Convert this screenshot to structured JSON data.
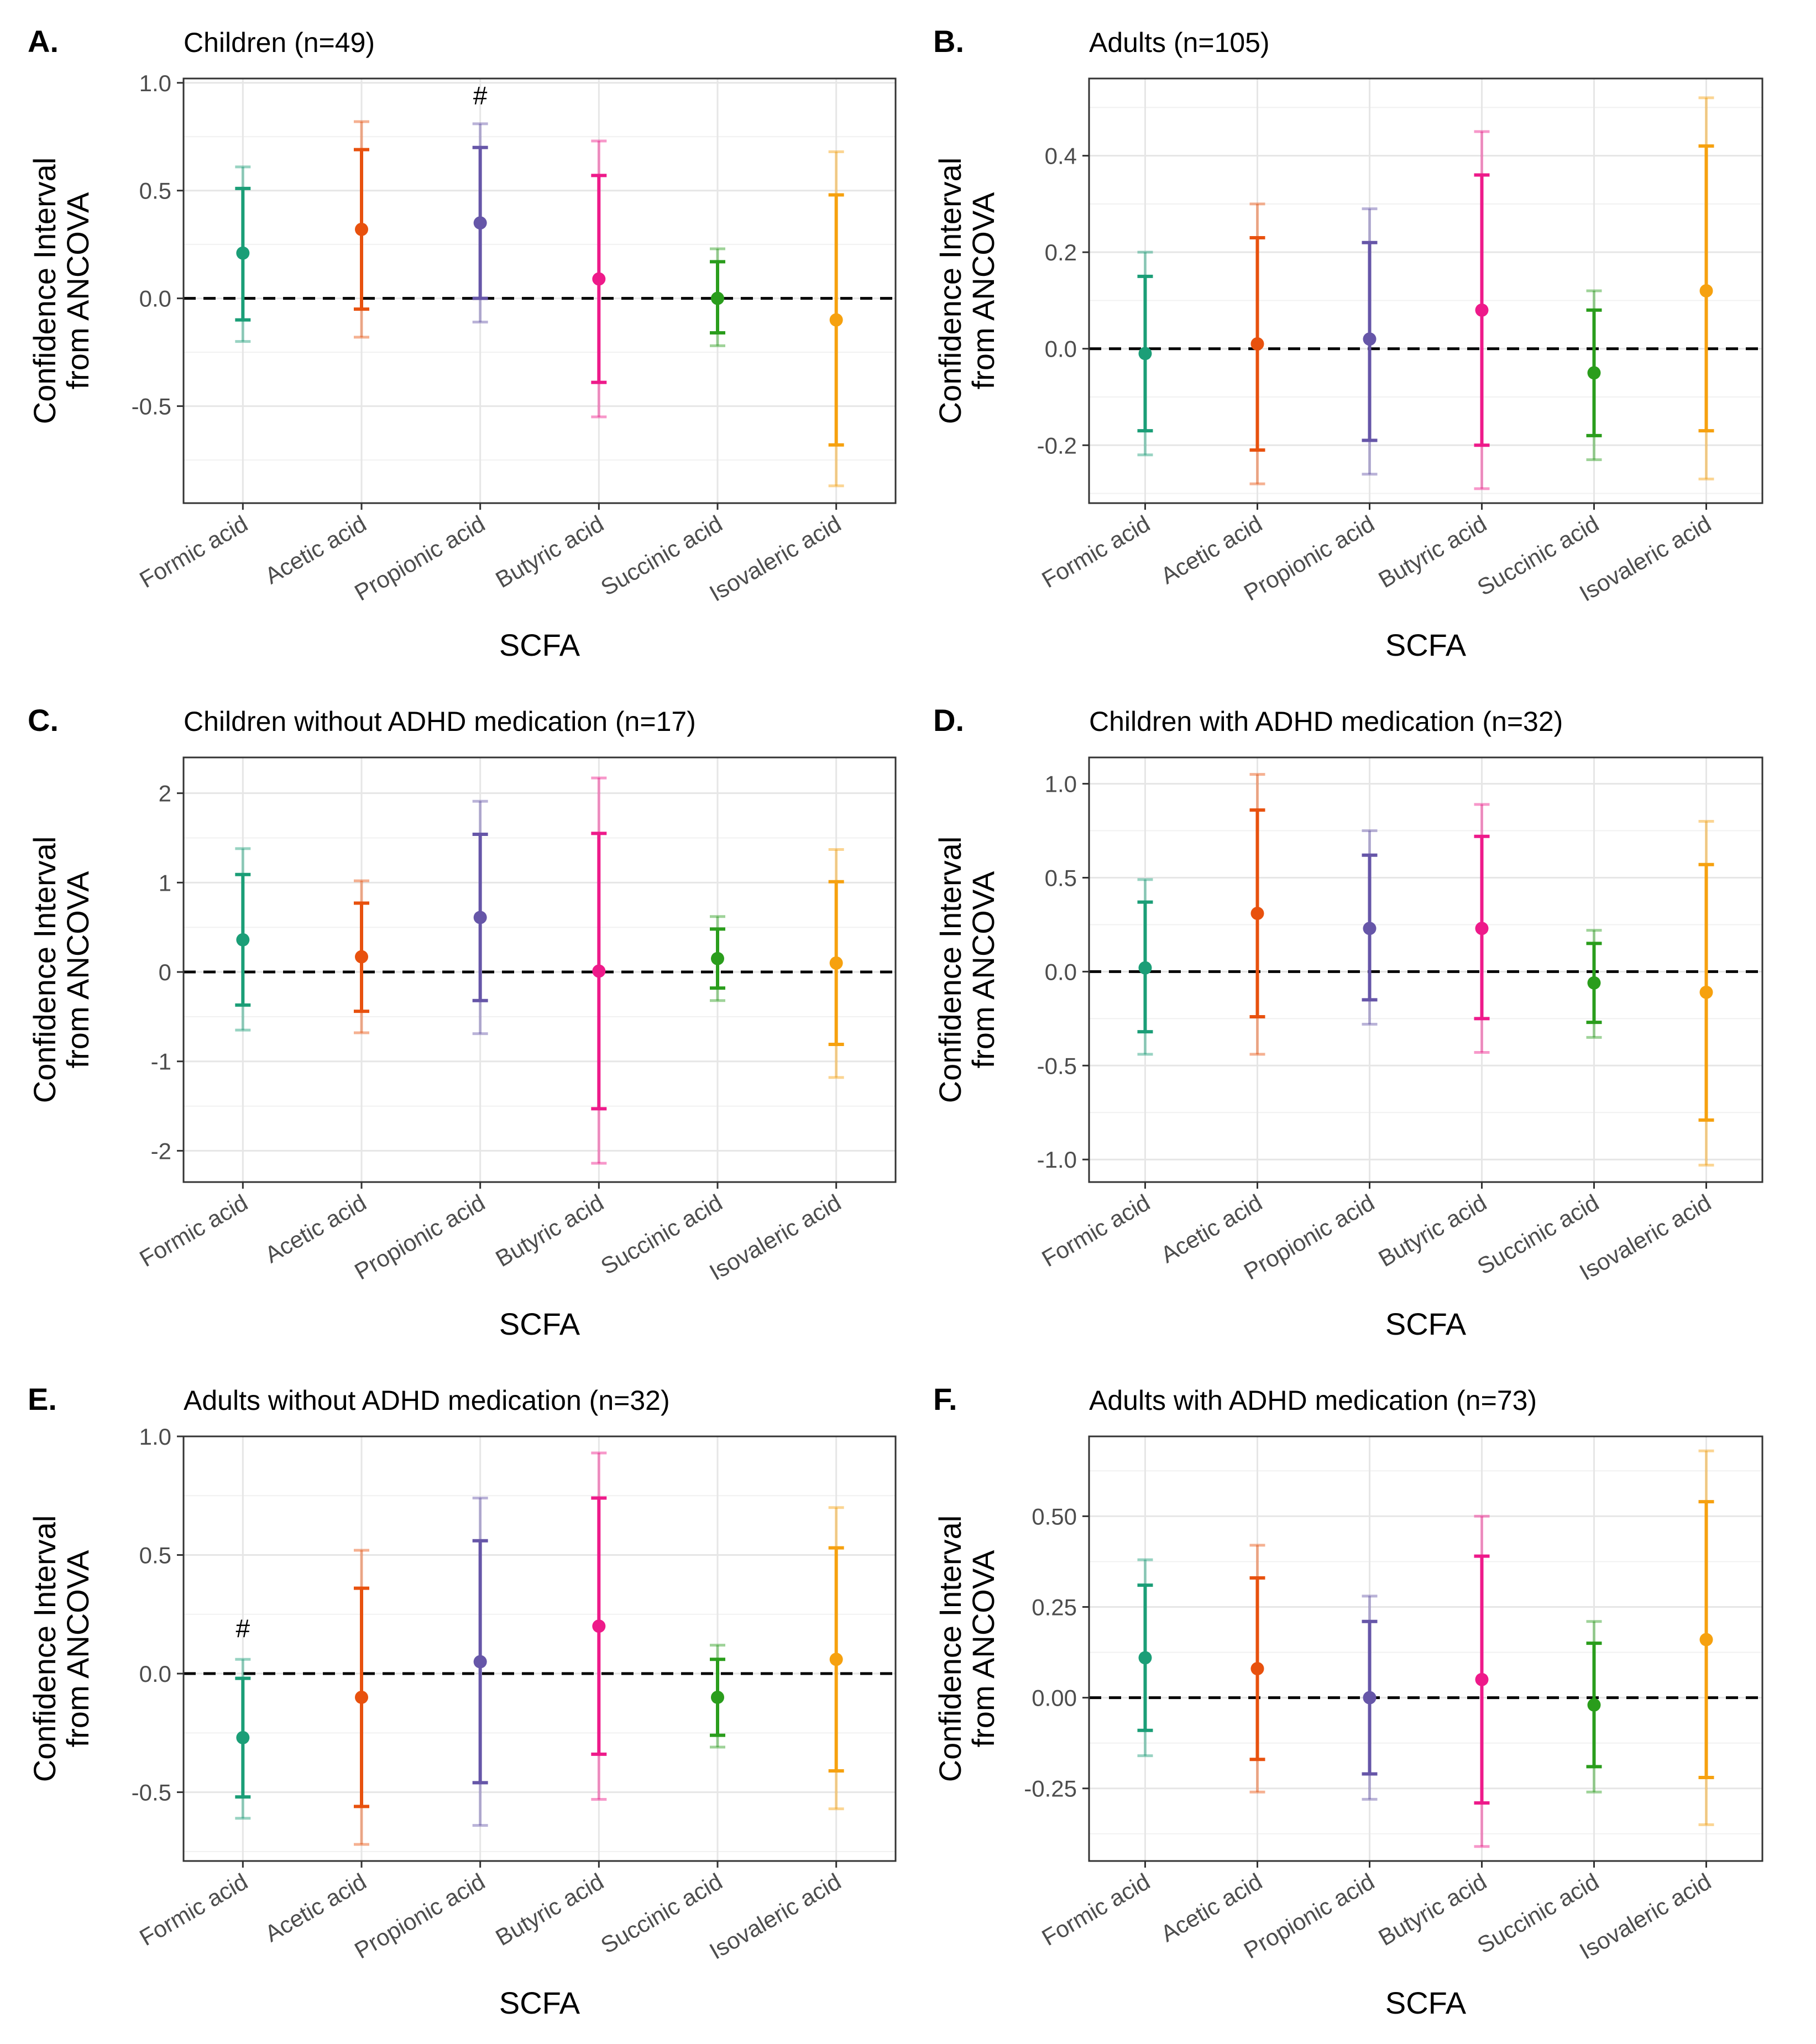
{
  "figure": {
    "colors": {
      "Formic acid": "#1b9e77",
      "Acetic acid": "#e8510e",
      "Propionic acid": "#6656a8",
      "Butyric acid": "#ee1a8a",
      "Succinic acid": "#2a9d1c",
      "Isovaleric acid": "#f6a10f"
    },
    "grid": true,
    "reference_line": 0
  },
  "chart_data": [
    {
      "panel": "A.",
      "type": "errorbar",
      "title": "Children (n=49)",
      "xlabel": "SCFA",
      "ylabel_line1": "Confidence Interval",
      "ylabel_line2": "from ANCOVA",
      "ylim": [
        -0.95,
        1.02
      ],
      "yticks": [
        1.0,
        0.5,
        0.0,
        -0.5
      ],
      "ytick_labels": [
        "1.0",
        "0.5",
        "0.0",
        "-0.5"
      ],
      "categories": [
        "Formic acid",
        "Acetic acid",
        "Propionic acid",
        "Butyric acid",
        "Succinic acid",
        "Isovaleric acid"
      ],
      "estimate": [
        0.21,
        0.32,
        0.35,
        0.09,
        0.0,
        -0.1
      ],
      "ci_inner_low": [
        -0.1,
        -0.05,
        0.0,
        -0.39,
        -0.16,
        -0.68
      ],
      "ci_inner_high": [
        0.51,
        0.69,
        0.7,
        0.57,
        0.17,
        0.48
      ],
      "ci_outer_low": [
        -0.2,
        -0.18,
        -0.11,
        -0.55,
        -0.22,
        -0.87
      ],
      "ci_outer_high": [
        0.61,
        0.82,
        0.81,
        0.73,
        0.23,
        0.68
      ],
      "annotations": [
        {
          "text": "#",
          "category": "Propionic acid",
          "y": 0.94
        }
      ]
    },
    {
      "panel": "B.",
      "type": "errorbar",
      "title": "Adults (n=105)",
      "xlabel": "SCFA",
      "ylabel_line1": "Confidence Interval",
      "ylabel_line2": "from ANCOVA",
      "ylim": [
        -0.32,
        0.56
      ],
      "yticks": [
        0.4,
        0.2,
        0.0,
        -0.2
      ],
      "ytick_labels": [
        "0.4",
        "0.2",
        "0.0",
        "-0.2"
      ],
      "categories": [
        "Formic acid",
        "Acetic acid",
        "Propionic acid",
        "Butyric acid",
        "Succinic acid",
        "Isovaleric acid"
      ],
      "estimate": [
        -0.01,
        0.01,
        0.02,
        0.08,
        -0.05,
        0.12
      ],
      "ci_inner_low": [
        -0.17,
        -0.21,
        -0.19,
        -0.2,
        -0.18,
        -0.17
      ],
      "ci_inner_high": [
        0.15,
        0.23,
        0.22,
        0.36,
        0.08,
        0.42
      ],
      "ci_outer_low": [
        -0.22,
        -0.28,
        -0.26,
        -0.29,
        -0.23,
        -0.27
      ],
      "ci_outer_high": [
        0.2,
        0.3,
        0.29,
        0.45,
        0.12,
        0.52
      ],
      "annotations": []
    },
    {
      "panel": "C.",
      "type": "errorbar",
      "title": "Children without ADHD medication (n=17)",
      "xlabel": "SCFA",
      "ylabel_line1": "Confidence Interval",
      "ylabel_line2": "from ANCOVA",
      "ylim": [
        -2.35,
        2.4
      ],
      "yticks": [
        2,
        1,
        0,
        -1,
        -2
      ],
      "ytick_labels": [
        "2",
        "1",
        "0",
        "-1",
        "-2"
      ],
      "categories": [
        "Formic acid",
        "Acetic acid",
        "Propionic acid",
        "Butyric acid",
        "Succinic acid",
        "Isovaleric acid"
      ],
      "estimate": [
        0.36,
        0.17,
        0.61,
        0.01,
        0.15,
        0.1
      ],
      "ci_inner_low": [
        -0.37,
        -0.44,
        -0.32,
        -1.53,
        -0.18,
        -0.81
      ],
      "ci_inner_high": [
        1.09,
        0.77,
        1.54,
        1.55,
        0.48,
        1.01
      ],
      "ci_outer_low": [
        -0.65,
        -0.68,
        -0.69,
        -2.14,
        -0.32,
        -1.18
      ],
      "ci_outer_high": [
        1.38,
        1.02,
        1.91,
        2.17,
        0.62,
        1.37
      ],
      "annotations": []
    },
    {
      "panel": "D.",
      "type": "errorbar",
      "title": "Children with ADHD medication (n=32)",
      "xlabel": "SCFA",
      "ylabel_line1": "Confidence Interval",
      "ylabel_line2": "from ANCOVA",
      "ylim": [
        -1.12,
        1.14
      ],
      "yticks": [
        1.0,
        0.5,
        0.0,
        -0.5,
        -1.0
      ],
      "ytick_labels": [
        "1.0",
        "0.5",
        "0.0",
        "-0.5",
        "-1.0"
      ],
      "categories": [
        "Formic acid",
        "Acetic acid",
        "Propionic acid",
        "Butyric acid",
        "Succinic acid",
        "Isovaleric acid"
      ],
      "estimate": [
        0.02,
        0.31,
        0.23,
        0.23,
        -0.06,
        -0.11
      ],
      "ci_inner_low": [
        -0.32,
        -0.24,
        -0.15,
        -0.25,
        -0.27,
        -0.79
      ],
      "ci_inner_high": [
        0.37,
        0.86,
        0.62,
        0.72,
        0.15,
        0.57
      ],
      "ci_outer_low": [
        -0.44,
        -0.44,
        -0.28,
        -0.43,
        -0.35,
        -1.03
      ],
      "ci_outer_high": [
        0.49,
        1.05,
        0.75,
        0.89,
        0.22,
        0.8
      ],
      "annotations": []
    },
    {
      "panel": "E.",
      "type": "errorbar",
      "title": "Adults without ADHD medication (n=32)",
      "xlabel": "SCFA",
      "ylabel_line1": "Confidence Interval",
      "ylabel_line2": "from ANCOVA",
      "ylim": [
        -0.79,
        1.0
      ],
      "yticks": [
        1.0,
        0.5,
        0.0,
        -0.5
      ],
      "ytick_labels": [
        "1.0",
        "0.5",
        "0.0",
        "-0.5"
      ],
      "categories": [
        "Formic acid",
        "Acetic acid",
        "Propionic acid",
        "Butyric acid",
        "Succinic acid",
        "Isovaleric acid"
      ],
      "estimate": [
        -0.27,
        -0.1,
        0.05,
        0.2,
        -0.1,
        0.06
      ],
      "ci_inner_low": [
        -0.52,
        -0.56,
        -0.46,
        -0.34,
        -0.26,
        -0.41
      ],
      "ci_inner_high": [
        -0.02,
        0.36,
        0.56,
        0.74,
        0.06,
        0.53
      ],
      "ci_outer_low": [
        -0.61,
        -0.72,
        -0.64,
        -0.53,
        -0.31,
        -0.57
      ],
      "ci_outer_high": [
        0.06,
        0.52,
        0.74,
        0.93,
        0.12,
        0.7
      ],
      "annotations": [
        {
          "text": "#",
          "category": "Formic acid",
          "y": 0.19
        }
      ]
    },
    {
      "panel": "F.",
      "type": "errorbar",
      "title": "Adults with ADHD medication (n=73)",
      "xlabel": "SCFA",
      "ylabel_line1": "Confidence Interval",
      "ylabel_line2": "from ANCOVA",
      "ylim": [
        -0.45,
        0.72
      ],
      "yticks": [
        0.5,
        0.25,
        0.0,
        -0.25
      ],
      "ytick_labels": [
        "0.50",
        "0.25",
        "0.00",
        "-0.25"
      ],
      "categories": [
        "Formic acid",
        "Acetic acid",
        "Propionic acid",
        "Butyric acid",
        "Succinic acid",
        "Isovaleric acid"
      ],
      "estimate": [
        0.11,
        0.08,
        0.0,
        0.05,
        -0.02,
        0.16
      ],
      "ci_inner_low": [
        -0.09,
        -0.17,
        -0.21,
        -0.29,
        -0.19,
        -0.22
      ],
      "ci_inner_high": [
        0.31,
        0.33,
        0.21,
        0.39,
        0.15,
        0.54
      ],
      "ci_outer_low": [
        -0.16,
        -0.26,
        -0.28,
        -0.41,
        -0.26,
        -0.35
      ],
      "ci_outer_high": [
        0.38,
        0.42,
        0.28,
        0.5,
        0.21,
        0.68
      ],
      "annotations": []
    }
  ]
}
